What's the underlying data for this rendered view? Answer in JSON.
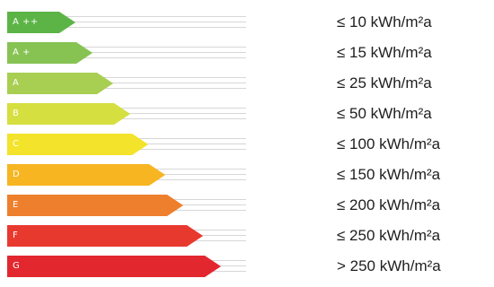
{
  "energy_scale": {
    "rows": [
      {
        "label": "A ++",
        "range": "≤ 10 kWh/m²a",
        "color": "#5cb446",
        "bar_length": 0.27
      },
      {
        "label": "A +",
        "range": "≤ 15 kWh/m²a",
        "color": "#87c353",
        "bar_length": 0.34
      },
      {
        "label": "A",
        "range": "≤ 25 kWh/m²a",
        "color": "#a8ce52",
        "bar_length": 0.42
      },
      {
        "label": "B",
        "range": "≤ 50 kWh/m²a",
        "color": "#d5df3f",
        "bar_length": 0.49
      },
      {
        "label": "C",
        "range": "≤ 100 kWh/m²a",
        "color": "#f3e32a",
        "bar_length": 0.56
      },
      {
        "label": "D",
        "range": "≤ 150 kWh/m²a",
        "color": "#f7b521",
        "bar_length": 0.63
      },
      {
        "label": "E",
        "range": "≤ 200 kWh/m²a",
        "color": "#ee7f2c",
        "bar_length": 0.7
      },
      {
        "label": "F",
        "range": "≤ 250 kWh/m²a",
        "color": "#e8392f",
        "bar_length": 0.78
      },
      {
        "label": "G",
        "range": "> 250 kWh/m²a",
        "color": "#e2272f",
        "bar_length": 0.85
      }
    ]
  }
}
